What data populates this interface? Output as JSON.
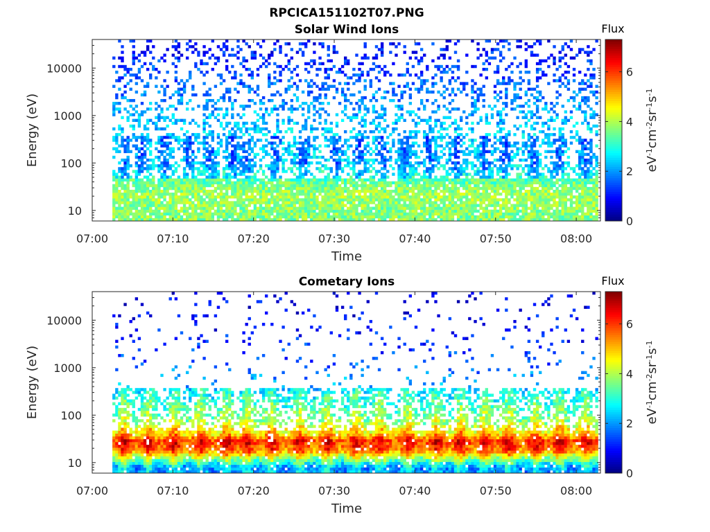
{
  "figure": {
    "title": "RPCICA151102T07.PNG"
  },
  "colormap": [
    "#00007f",
    "#0000ff",
    "#007fff",
    "#00ffff",
    "#7fff7f",
    "#ffff00",
    "#ff7f00",
    "#ff0000",
    "#7f0000"
  ],
  "chart_data": [
    {
      "type": "heatmap",
      "title": "Solar Wind Ions",
      "xlabel": "Time",
      "ylabel": "Energy (eV)",
      "x_ticks": [
        "07:00",
        "07:10",
        "07:20",
        "07:30",
        "07:40",
        "07:50",
        "08:00"
      ],
      "x_tick_values_min": [
        0,
        10,
        20,
        30,
        40,
        50,
        60
      ],
      "xlim_min": [
        0,
        63
      ],
      "y_scale": "log",
      "y_ticks": [
        "10",
        "100",
        "1000",
        "10000"
      ],
      "y_tick_values": [
        10,
        100,
        1000,
        10000
      ],
      "ylim": [
        6,
        40000
      ],
      "colorbar": {
        "label": "Flux",
        "units": "eV-1 cm-2 sr-1 s-1",
        "range": [
          0,
          7.3
        ],
        "ticks": [
          "0",
          "2",
          "4",
          "6"
        ],
        "tick_values": [
          0,
          2,
          4,
          6
        ]
      },
      "data_start_min": 2.5,
      "data_end_min": 62.7,
      "profile": [
        {
          "energy_eV": 10,
          "flux": 3.7
        },
        {
          "energy_eV": 20,
          "flux": 3.9
        },
        {
          "energy_eV": 35,
          "flux": 3.6
        },
        {
          "energy_eV": 60,
          "flux": 3.0
        },
        {
          "energy_eV": 100,
          "flux": 2.6
        },
        {
          "energy_eV": 300,
          "flux": 2.5
        },
        {
          "energy_eV": 1000,
          "flux": 2.2
        },
        {
          "energy_eV": 5000,
          "flux": 1.6
        },
        {
          "energy_eV": 20000,
          "flux": 1.1
        }
      ],
      "pulse_times_min": [
        3.8,
        6.0,
        8.8,
        11.8,
        14.5,
        17.3,
        19.0,
        22.5,
        26.0,
        30.0,
        33.0,
        35.8,
        38.5,
        41.5,
        45.0,
        48.5,
        51.0,
        54.5,
        57.5,
        61.0
      ]
    },
    {
      "type": "heatmap",
      "title": "Cometary Ions",
      "xlabel": "Time",
      "ylabel": "Energy (eV)",
      "x_ticks": [
        "07:00",
        "07:10",
        "07:20",
        "07:30",
        "07:40",
        "07:50",
        "08:00"
      ],
      "x_tick_values_min": [
        0,
        10,
        20,
        30,
        40,
        50,
        60
      ],
      "xlim_min": [
        0,
        63
      ],
      "y_scale": "log",
      "y_ticks": [
        "10",
        "100",
        "1000",
        "10000"
      ],
      "y_tick_values": [
        10,
        100,
        1000,
        10000
      ],
      "ylim": [
        6,
        40000
      ],
      "colorbar": {
        "label": "Flux",
        "units": "eV-1 cm-2 sr-1 s-1",
        "range": [
          0,
          7.3
        ],
        "ticks": [
          "0",
          "2",
          "4",
          "6"
        ],
        "tick_values": [
          0,
          2,
          4,
          6
        ]
      },
      "data_start_min": 2.5,
      "data_end_min": 62.7,
      "profile": [
        {
          "energy_eV": 8,
          "flux": 2.2
        },
        {
          "energy_eV": 12,
          "flux": 3.8
        },
        {
          "energy_eV": 18,
          "flux": 5.6
        },
        {
          "energy_eV": 28,
          "flux": 6.2
        },
        {
          "energy_eV": 40,
          "flux": 5.0
        },
        {
          "energy_eV": 70,
          "flux": 3.6
        },
        {
          "energy_eV": 150,
          "flux": 3.0
        },
        {
          "energy_eV": 400,
          "flux": 2.2
        },
        {
          "energy_eV": 2000,
          "flux": 1.3
        },
        {
          "energy_eV": 10000,
          "flux": 0.9
        }
      ],
      "pulse_times_min": [
        3.8,
        6.8,
        10.0,
        13.2,
        16.5,
        19.0,
        22.0,
        25.5,
        29.0,
        32.5,
        35.5,
        39.0,
        42.5,
        45.5,
        48.5,
        51.5,
        54.8,
        57.8,
        61.0
      ]
    }
  ]
}
